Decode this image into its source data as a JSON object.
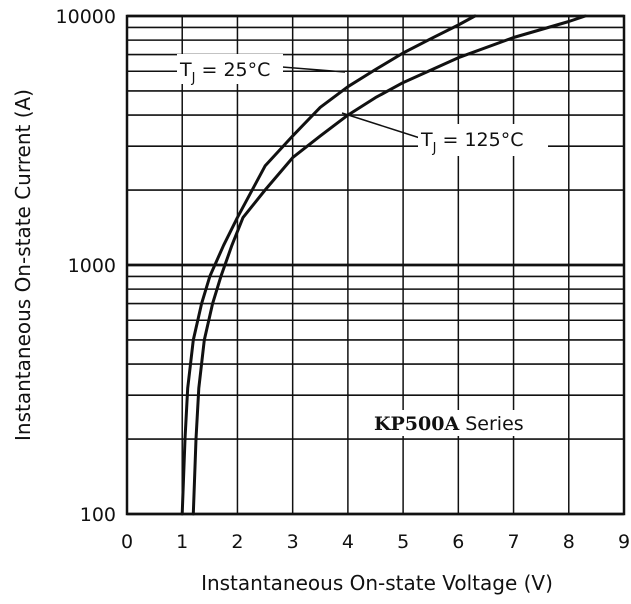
{
  "chart_data": {
    "type": "line",
    "title": "",
    "xlabel": "Instantaneous On-state Voltage (V)",
    "ylabel": "Instantaneous On-state Current (A)",
    "xlim": [
      0,
      9
    ],
    "ylim": [
      100,
      10000
    ],
    "yscale": "log",
    "x_ticks": [
      "0",
      "1",
      "2",
      "3",
      "4",
      "5",
      "6",
      "7",
      "8",
      "9"
    ],
    "y_ticks": [
      "100",
      "1000",
      "10000"
    ],
    "grid": true,
    "series": [
      {
        "name": "TJ = 25°C",
        "x": [
          1.0,
          1.05,
          1.1,
          1.2,
          1.35,
          1.5,
          1.75,
          2.0,
          2.5,
          3.0,
          3.5,
          4.0,
          4.5,
          5.0,
          5.5,
          6.0,
          6.3
        ],
        "y": [
          100,
          200,
          320,
          500,
          700,
          900,
          1200,
          1550,
          2500,
          3300,
          4300,
          5200,
          6100,
          7100,
          8100,
          9200,
          10000
        ]
      },
      {
        "name": "TJ = 125°C",
        "x": [
          1.2,
          1.25,
          1.3,
          1.4,
          1.55,
          1.7,
          1.9,
          2.1,
          2.5,
          3.0,
          3.5,
          4.0,
          4.5,
          5.0,
          6.0,
          7.0,
          8.0,
          8.3
        ],
        "y": [
          100,
          200,
          320,
          500,
          700,
          900,
          1200,
          1550,
          2000,
          2700,
          3300,
          4000,
          4700,
          5400,
          6800,
          8200,
          9500,
          10000
        ]
      }
    ],
    "annotations": {
      "tj25": {
        "t": "T",
        "sub": "J",
        "rest": " = 25°C"
      },
      "tj125": {
        "t": "T",
        "sub": "J",
        "rest": " = 125°C"
      },
      "series_label": {
        "bold": "KP500A",
        "normal": " Series"
      }
    }
  }
}
